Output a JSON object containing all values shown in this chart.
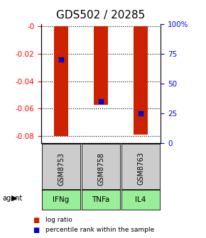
{
  "title": "GDS502 / 20285",
  "samples": [
    "GSM8753",
    "GSM8758",
    "GSM8763"
  ],
  "agents": [
    "IFNg",
    "TNFa",
    "IL4"
  ],
  "log_ratios": [
    -0.08,
    -0.057,
    -0.079
  ],
  "percentile_ranks": [
    70,
    35,
    25
  ],
  "ylim_left": [
    -0.085,
    0.002
  ],
  "ylim_right": [
    0,
    100
  ],
  "yticks_left": [
    0,
    -0.02,
    -0.04,
    -0.06,
    -0.08
  ],
  "ytick_labels_left": [
    "-0",
    "-0.02",
    "-0.04",
    "-0.06",
    "-0.08"
  ],
  "yticks_right": [
    0,
    25,
    50,
    75,
    100
  ],
  "ytick_labels_right": [
    "0",
    "25",
    "50",
    "75",
    "100%"
  ],
  "bar_color": "#cc2200",
  "dot_color": "#0000cc",
  "agent_bg_color": "#99ee99",
  "sample_bg_color": "#cccccc",
  "title_fontsize": 11,
  "axis_fontsize": 7.5,
  "bar_width": 0.35
}
